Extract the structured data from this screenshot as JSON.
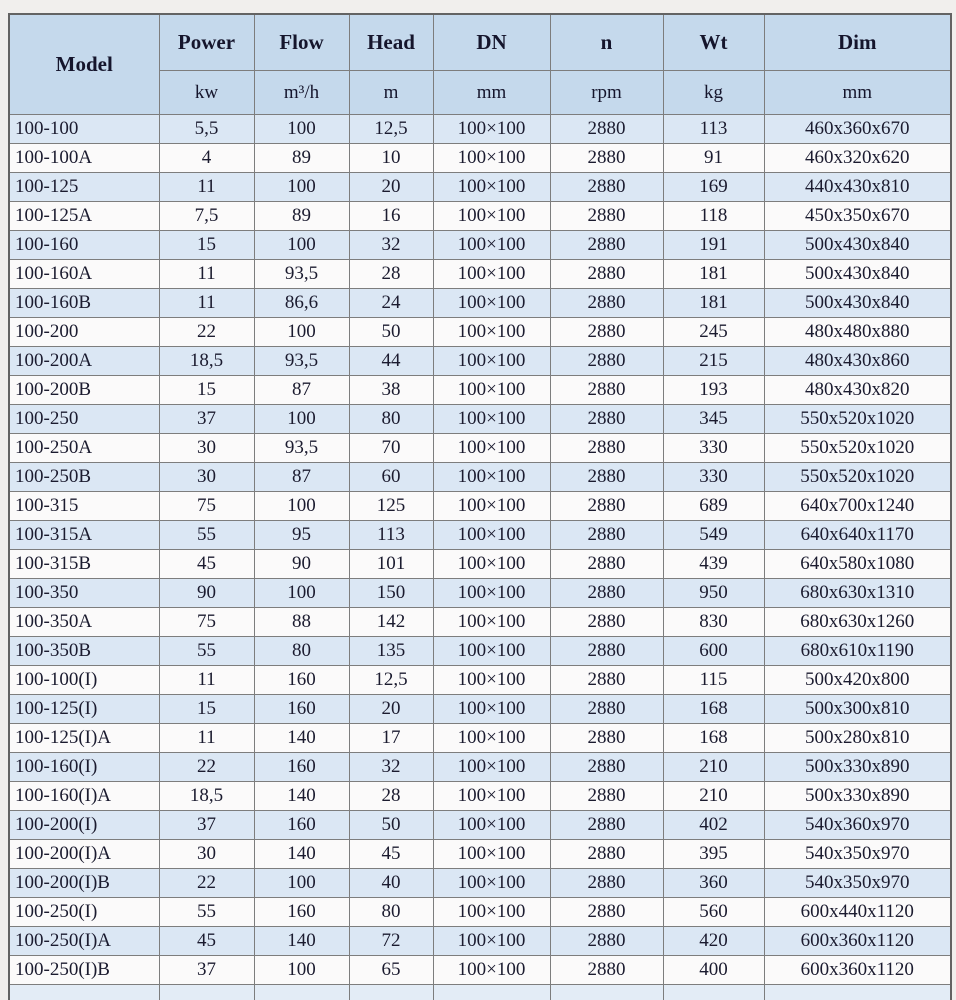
{
  "table": {
    "columns": [
      {
        "label": "Model",
        "unit": ""
      },
      {
        "label": "Power",
        "unit": "kw"
      },
      {
        "label": "Flow",
        "unit": "m³/h"
      },
      {
        "label": "Head",
        "unit": "m"
      },
      {
        "label": "DN",
        "unit": "mm"
      },
      {
        "label": "n",
        "unit": "rpm"
      },
      {
        "label": "Wt",
        "unit": "kg"
      },
      {
        "label": "Dim",
        "unit": "mm"
      }
    ],
    "rows": [
      [
        "100-100",
        "5,5",
        "100",
        "12,5",
        "100×100",
        "2880",
        "113",
        "460x360x670"
      ],
      [
        "100-100A",
        "4",
        "89",
        "10",
        "100×100",
        "2880",
        "91",
        "460x320x620"
      ],
      [
        "100-125",
        "11",
        "100",
        "20",
        "100×100",
        "2880",
        "169",
        "440x430x810"
      ],
      [
        "100-125A",
        "7,5",
        "89",
        "16",
        "100×100",
        "2880",
        "118",
        "450x350x670"
      ],
      [
        "100-160",
        "15",
        "100",
        "32",
        "100×100",
        "2880",
        "191",
        "500x430x840"
      ],
      [
        "100-160A",
        "11",
        "93,5",
        "28",
        "100×100",
        "2880",
        "181",
        "500x430x840"
      ],
      [
        "100-160B",
        "11",
        "86,6",
        "24",
        "100×100",
        "2880",
        "181",
        "500x430x840"
      ],
      [
        "100-200",
        "22",
        "100",
        "50",
        "100×100",
        "2880",
        "245",
        "480x480x880"
      ],
      [
        "100-200A",
        "18,5",
        "93,5",
        "44",
        "100×100",
        "2880",
        "215",
        "480x430x860"
      ],
      [
        "100-200B",
        "15",
        "87",
        "38",
        "100×100",
        "2880",
        "193",
        "480x430x820"
      ],
      [
        "100-250",
        "37",
        "100",
        "80",
        "100×100",
        "2880",
        "345",
        "550x520x1020"
      ],
      [
        "100-250A",
        "30",
        "93,5",
        "70",
        "100×100",
        "2880",
        "330",
        "550x520x1020"
      ],
      [
        "100-250B",
        "30",
        "87",
        "60",
        "100×100",
        "2880",
        "330",
        "550x520x1020"
      ],
      [
        "100-315",
        "75",
        "100",
        "125",
        "100×100",
        "2880",
        "689",
        "640x700x1240"
      ],
      [
        "100-315A",
        "55",
        "95",
        "113",
        "100×100",
        "2880",
        "549",
        "640x640x1170"
      ],
      [
        "100-315B",
        "45",
        "90",
        "101",
        "100×100",
        "2880",
        "439",
        "640x580x1080"
      ],
      [
        "100-350",
        "90",
        "100",
        "150",
        "100×100",
        "2880",
        "950",
        "680x630x1310"
      ],
      [
        "100-350A",
        "75",
        "88",
        "142",
        "100×100",
        "2880",
        "830",
        "680x630x1260"
      ],
      [
        "100-350B",
        "55",
        "80",
        "135",
        "100×100",
        "2880",
        "600",
        "680x610x1190"
      ],
      [
        "100-100(I)",
        "11",
        "160",
        "12,5",
        "100×100",
        "2880",
        "115",
        "500x420x800"
      ],
      [
        "100-125(I)",
        "15",
        "160",
        "20",
        "100×100",
        "2880",
        "168",
        "500x300x810"
      ],
      [
        "100-125(I)A",
        "11",
        "140",
        "17",
        "100×100",
        "2880",
        "168",
        "500x280x810"
      ],
      [
        "100-160(I)",
        "22",
        "160",
        "32",
        "100×100",
        "2880",
        "210",
        "500x330x890"
      ],
      [
        "100-160(I)A",
        "18,5",
        "140",
        "28",
        "100×100",
        "2880",
        "210",
        "500x330x890"
      ],
      [
        "100-200(I)",
        "37",
        "160",
        "50",
        "100×100",
        "2880",
        "402",
        "540x360x970"
      ],
      [
        "100-200(I)A",
        "30",
        "140",
        "45",
        "100×100",
        "2880",
        "395",
        "540x350x970"
      ],
      [
        "100-200(I)B",
        "22",
        "100",
        "40",
        "100×100",
        "2880",
        "360",
        "540x350x970"
      ],
      [
        "100-250(I)",
        "55",
        "160",
        "80",
        "100×100",
        "2880",
        "560",
        "600x440x1120"
      ],
      [
        "100-250(I)A",
        "45",
        "140",
        "72",
        "100×100",
        "2880",
        "420",
        "600x360x1120"
      ],
      [
        "100-250(I)B",
        "37",
        "100",
        "65",
        "100×100",
        "2880",
        "400",
        "600x360x1120"
      ]
    ]
  },
  "colors": {
    "page_background": "#f1efed",
    "header_background": "#c5d9ec",
    "row_blue": "#dbe7f4",
    "row_white": "#fbfafa",
    "border": "#7d7d7d",
    "text": "#1b1b2f"
  }
}
